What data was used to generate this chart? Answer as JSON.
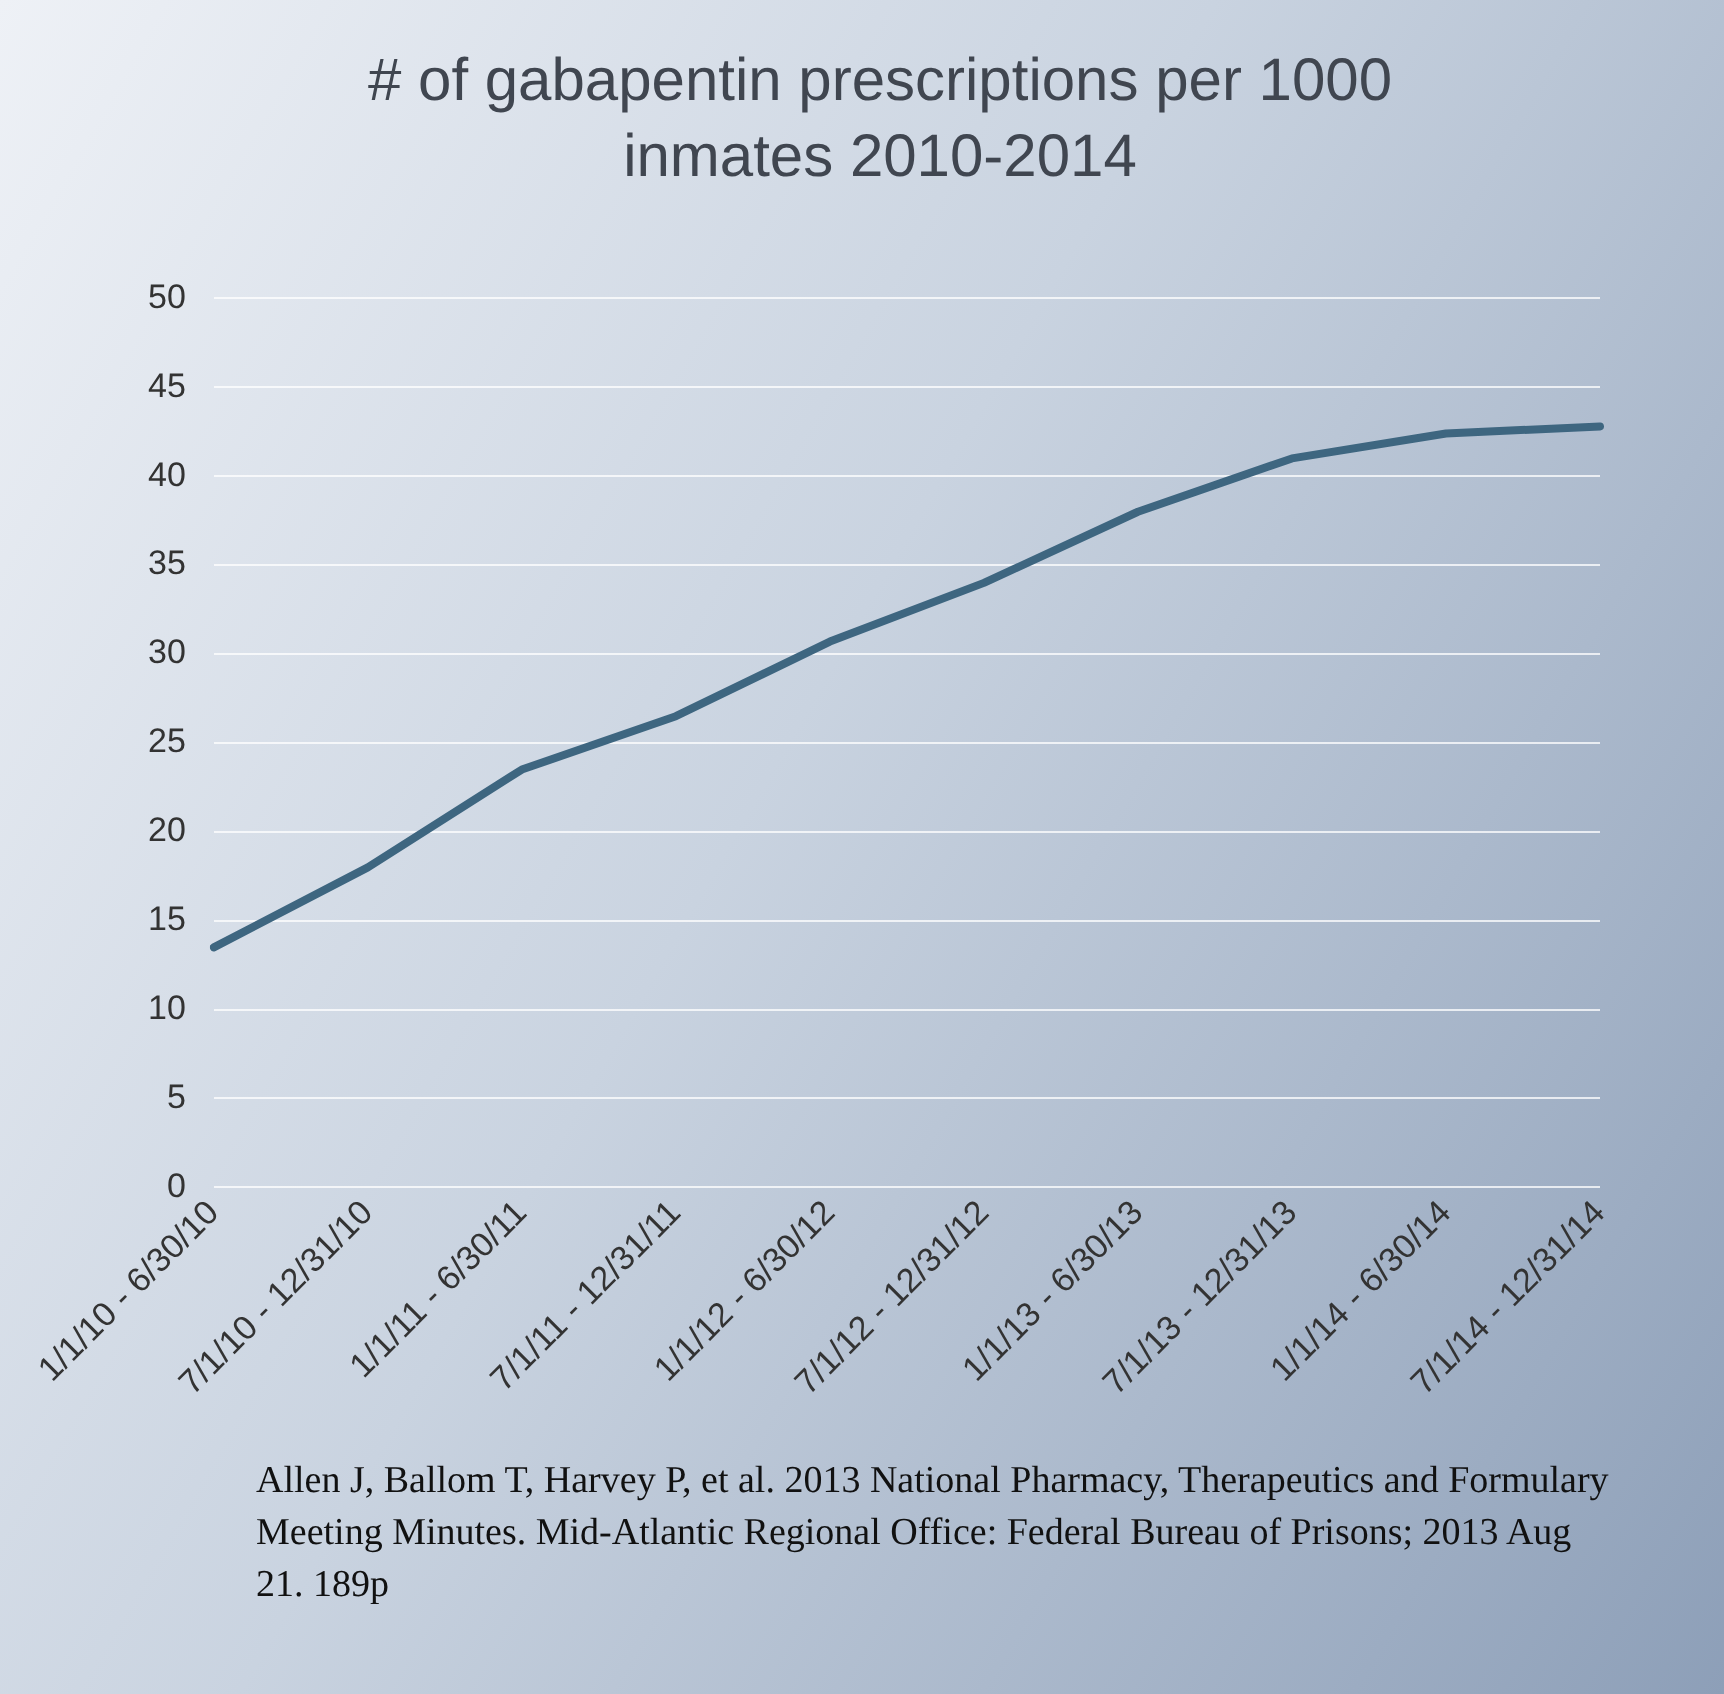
{
  "chart_data": {
    "type": "line",
    "title": "# of gabapentin prescriptions per 1000 inmates 2010-2014",
    "categories": [
      "1/1/10 - 6/30/10",
      "7/1/10 - 12/31/10",
      "1/1/11 - 6/30/11",
      "7/1/11 - 12/31/11",
      "1/1/12 - 6/30/12",
      "7/1/12 - 12/31/12",
      "1/1/13 - 6/30/13",
      "7/1/13 - 12/31/13",
      "1/1/14 - 6/30/14",
      "7/1/14 - 12/31/14"
    ],
    "values": [
      13.5,
      18,
      23.5,
      26.5,
      30.7,
      34,
      38,
      41,
      42.4,
      42.8
    ],
    "color": "#3e6680",
    "ylim": [
      0,
      50
    ],
    "yticks": [
      0,
      5,
      10,
      15,
      20,
      25,
      30,
      35,
      40,
      45,
      50
    ],
    "grid": "y",
    "legend": false,
    "marker": "none",
    "line_style": "solid",
    "annotations": [
      "Allen J, Ballom T, Harvey P, et al. 2013 National Pharmacy, Therapeutics and Formulary Meeting Minutes. Mid-Atlantic Regional Office: Federal Bureau of Prisons; 2013 Aug 21. 189p"
    ]
  }
}
